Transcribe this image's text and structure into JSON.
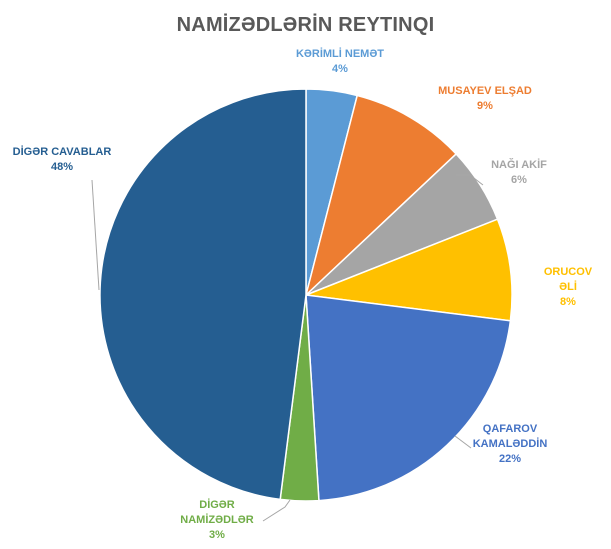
{
  "chart_data": {
    "type": "pie",
    "title": "NAMİZƏDLƏRİN REYTINQI",
    "slices": [
      {
        "label": [
          "KƏRİMLİ NEMƏT"
        ],
        "value": 4,
        "pct_label": "4%",
        "color": "#5B9BD5"
      },
      {
        "label": [
          "MUSAYEV ELŞAD"
        ],
        "value": 9,
        "pct_label": "9%",
        "color": "#ED7D31"
      },
      {
        "label": [
          "NAĞI AKİF"
        ],
        "value": 6,
        "pct_label": "6%",
        "color": "#A5A5A5"
      },
      {
        "label": [
          "ORUCOV",
          "ƏLİ"
        ],
        "value": 8,
        "pct_label": "8%",
        "color": "#FFC000"
      },
      {
        "label": [
          "QAFAROV",
          "KAMALƏDDİN"
        ],
        "value": 22,
        "pct_label": "22%",
        "color": "#4472C4"
      },
      {
        "label": [
          "DİGƏR",
          "NAMİZƏDLƏR"
        ],
        "value": 3,
        "pct_label": "3%",
        "color": "#70AD47"
      },
      {
        "label": [
          "DİGƏR CAVABLAR"
        ],
        "value": 48,
        "pct_label": "48%",
        "color": "#255E91"
      }
    ]
  }
}
